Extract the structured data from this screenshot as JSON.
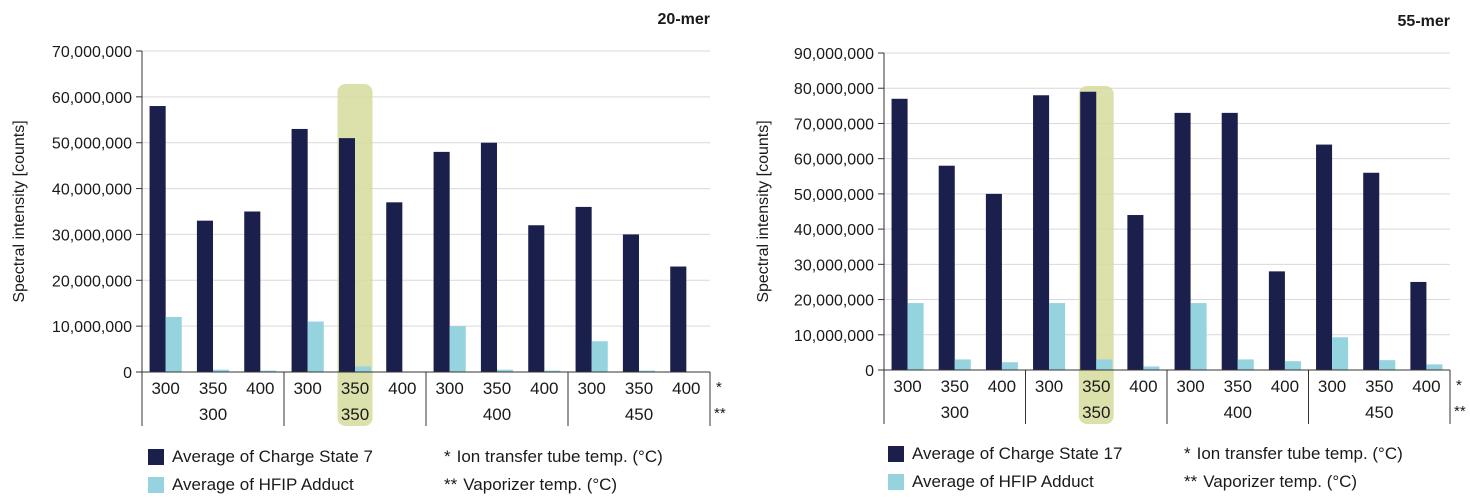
{
  "chart_data": [
    {
      "type": "bar",
      "title": "20-mer",
      "ylabel": "Spectral intensity [counts]",
      "ylim": [
        0,
        70000000
      ],
      "yticks": [
        0,
        10000000,
        20000000,
        30000000,
        40000000,
        50000000,
        60000000,
        70000000
      ],
      "ytick_labels": [
        "0",
        "10,000,000",
        "20,000,000",
        "30,000,000",
        "40,000,000",
        "50,000,000",
        "60,000,000",
        "70,000,000"
      ],
      "categories": [
        "300",
        "350",
        "400",
        "300",
        "350",
        "400",
        "300",
        "350",
        "400",
        "300",
        "350",
        "400"
      ],
      "groups": [
        "300",
        "350",
        "400",
        "450"
      ],
      "highlight_index": 4,
      "series": [
        {
          "name": "Average of Charge State 7",
          "values": [
            58000000,
            33000000,
            35000000,
            53000000,
            51000000,
            37000000,
            48000000,
            50000000,
            32000000,
            36000000,
            30000000,
            23000000
          ]
        },
        {
          "name": "Average of HFIP Adduct",
          "values": [
            12000000,
            500000,
            300000,
            11000000,
            1200000,
            0,
            10000000,
            500000,
            300000,
            6700000,
            300000,
            0
          ]
        }
      ],
      "row_markers": [
        "*",
        "**"
      ],
      "grid": true
    },
    {
      "type": "bar",
      "title": "55-mer",
      "ylabel": "Spectral intensity [counts]",
      "ylim": [
        0,
        90000000
      ],
      "yticks": [
        0,
        10000000,
        20000000,
        30000000,
        40000000,
        50000000,
        60000000,
        70000000,
        80000000,
        90000000
      ],
      "ytick_labels": [
        "0",
        "10,000,000",
        "20,000,000",
        "30,000,000",
        "40,000,000",
        "50,000,000",
        "60,000,000",
        "70,000,000",
        "80,000,000",
        "90,000,000"
      ],
      "categories": [
        "300",
        "350",
        "400",
        "300",
        "350",
        "400",
        "300",
        "350",
        "400",
        "300",
        "350",
        "400"
      ],
      "groups": [
        "300",
        "350",
        "400",
        "450"
      ],
      "highlight_index": 4,
      "series": [
        {
          "name": "Average of Charge State 17",
          "values": [
            77000000,
            58000000,
            50000000,
            78000000,
            79000000,
            44000000,
            73000000,
            73000000,
            28000000,
            64000000,
            56000000,
            25000000
          ]
        },
        {
          "name": "Average of HFIP Adduct",
          "values": [
            19000000,
            3000000,
            2200000,
            19000000,
            3000000,
            1000000,
            19000000,
            3000000,
            2500000,
            9300000,
            2800000,
            1600000
          ]
        }
      ],
      "row_markers": [
        "*",
        "**"
      ],
      "grid": true
    }
  ],
  "colors": {
    "primary_series": "#1b1f4b",
    "secondary_series": "#95d3de",
    "highlight": "#d6dc9d",
    "grid": "#d9d9d9",
    "axis": "#333333"
  },
  "legends": [
    {
      "items": [
        "Average of Charge State 7",
        "Average of HFIP Adduct"
      ],
      "notes": [
        {
          "mark": "*",
          "text": "Ion transfer tube temp. (°C)"
        },
        {
          "mark": "**",
          "text": "Vaporizer temp. (°C)"
        }
      ]
    },
    {
      "items": [
        "Average of Charge State 17",
        "Average of HFIP Adduct"
      ],
      "notes": [
        {
          "mark": "*",
          "text": "Ion transfer tube temp. (°C)"
        },
        {
          "mark": "**",
          "text": "Vaporizer temp. (°C)"
        }
      ]
    }
  ]
}
